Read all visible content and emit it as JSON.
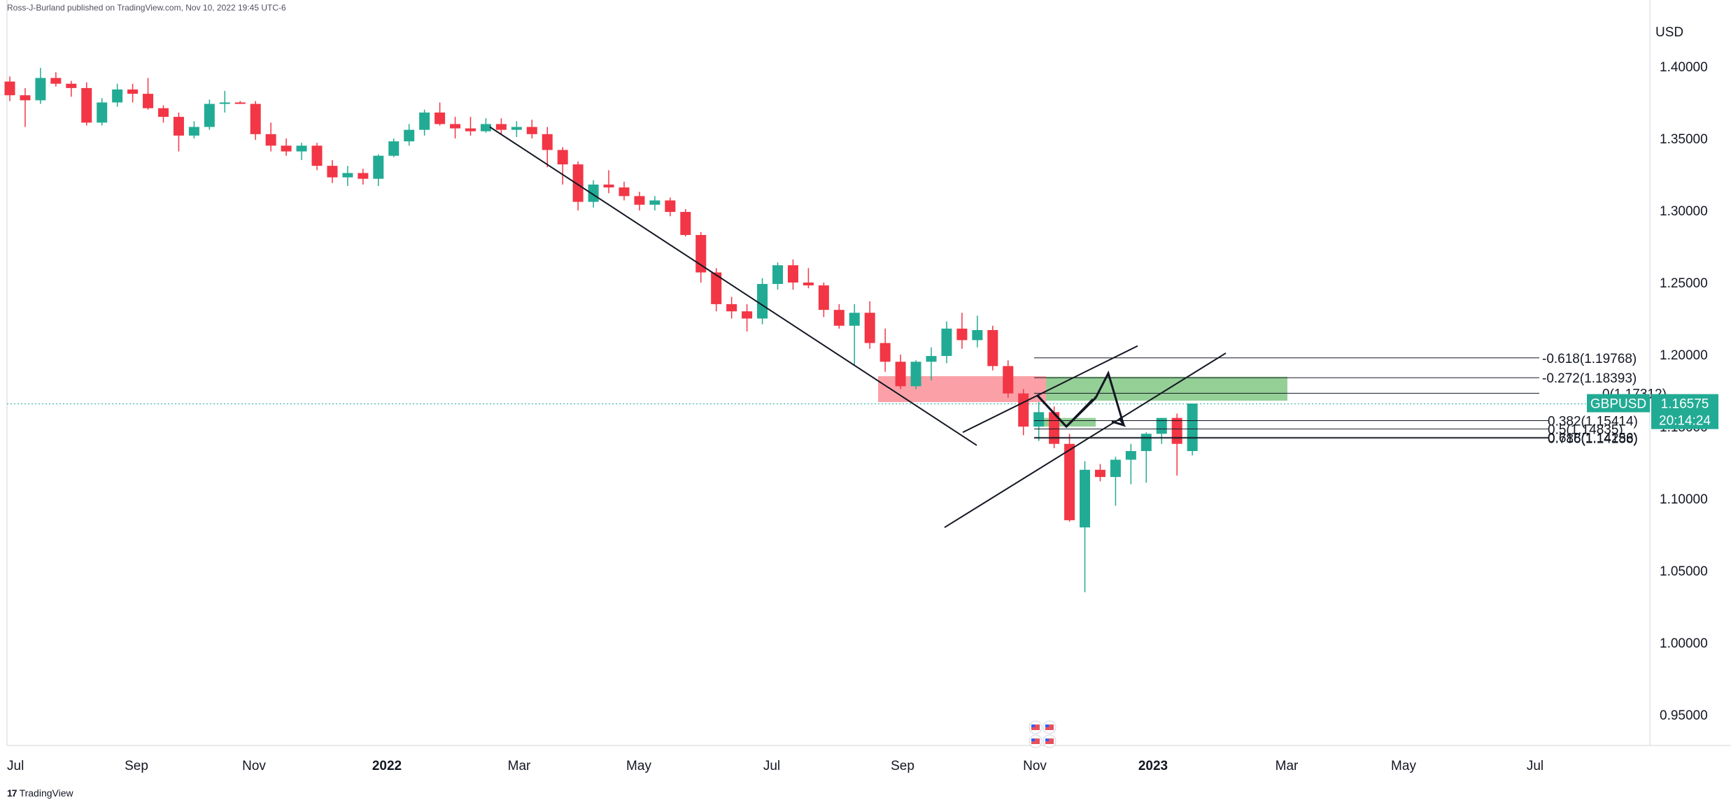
{
  "header": {
    "publisher": "Ross-J-Burland published on TradingView.com, Nov 10, 2022 19:45 UTC-6"
  },
  "footer": {
    "logo_text": "TradingView"
  },
  "price_tag": {
    "symbol": "GBPUSD",
    "price": "1.16575",
    "countdown": "20:14:24",
    "color": "#22ab94"
  },
  "chart_data": {
    "type": "candlestick",
    "currency": "USD",
    "timeframe": "weekly",
    "ylim": [
      0.93,
      1.415
    ],
    "y_ticks": [
      "1.40000",
      "1.35000",
      "1.30000",
      "1.25000",
      "1.20000",
      "1.15000",
      "1.10000",
      "1.05000",
      "1.00000",
      "0.95000"
    ],
    "x_ticks": [
      "Jul",
      "Sep",
      "Nov",
      "2022",
      "Mar",
      "May",
      "Jul",
      "Sep",
      "Nov",
      "2023",
      "Mar",
      "May",
      "Jul"
    ],
    "x_ticks_bold": [
      "2022",
      "2023"
    ],
    "up_color": "#22ab94",
    "down_color": "#f23645",
    "candles": [
      [
        1.3895,
        1.393,
        1.376,
        1.38
      ],
      [
        1.38,
        1.385,
        1.358,
        1.3765
      ],
      [
        1.3765,
        1.399,
        1.374,
        1.392
      ],
      [
        1.392,
        1.396,
        1.386,
        1.388
      ],
      [
        1.388,
        1.39,
        1.379,
        1.385
      ],
      [
        1.385,
        1.389,
        1.359,
        1.361
      ],
      [
        1.361,
        1.378,
        1.359,
        1.375
      ],
      [
        1.375,
        1.388,
        1.372,
        1.384
      ],
      [
        1.384,
        1.388,
        1.375,
        1.381
      ],
      [
        1.381,
        1.392,
        1.37,
        1.371
      ],
      [
        1.371,
        1.373,
        1.361,
        1.365
      ],
      [
        1.365,
        1.368,
        1.341,
        1.352
      ],
      [
        1.352,
        1.362,
        1.35,
        1.358
      ],
      [
        1.358,
        1.377,
        1.356,
        1.374
      ],
      [
        1.374,
        1.383,
        1.368,
        1.375
      ],
      [
        1.375,
        1.376,
        1.374,
        1.374
      ],
      [
        1.374,
        1.376,
        1.349,
        1.353
      ],
      [
        1.353,
        1.361,
        1.341,
        1.345
      ],
      [
        1.345,
        1.35,
        1.338,
        1.341
      ],
      [
        1.341,
        1.347,
        1.335,
        1.345
      ],
      [
        1.345,
        1.347,
        1.328,
        1.331
      ],
      [
        1.331,
        1.335,
        1.319,
        1.323
      ],
      [
        1.323,
        1.331,
        1.317,
        1.326
      ],
      [
        1.326,
        1.329,
        1.318,
        1.322
      ],
      [
        1.322,
        1.339,
        1.317,
        1.338
      ],
      [
        1.338,
        1.35,
        1.337,
        1.348
      ],
      [
        1.348,
        1.36,
        1.345,
        1.356
      ],
      [
        1.356,
        1.37,
        1.352,
        1.368
      ],
      [
        1.368,
        1.375,
        1.359,
        1.36
      ],
      [
        1.36,
        1.365,
        1.35,
        1.357
      ],
      [
        1.357,
        1.365,
        1.352,
        1.355
      ],
      [
        1.355,
        1.364,
        1.354,
        1.36
      ],
      [
        1.36,
        1.364,
        1.353,
        1.356
      ],
      [
        1.356,
        1.362,
        1.351,
        1.358
      ],
      [
        1.358,
        1.363,
        1.35,
        1.353
      ],
      [
        1.353,
        1.358,
        1.33,
        1.342
      ],
      [
        1.342,
        1.344,
        1.318,
        1.332
      ],
      [
        1.332,
        1.334,
        1.3,
        1.306
      ],
      [
        1.306,
        1.321,
        1.302,
        1.318
      ],
      [
        1.318,
        1.328,
        1.312,
        1.316
      ],
      [
        1.316,
        1.32,
        1.307,
        1.31
      ],
      [
        1.31,
        1.313,
        1.3,
        1.304
      ],
      [
        1.304,
        1.31,
        1.3,
        1.307
      ],
      [
        1.307,
        1.309,
        1.296,
        1.299
      ],
      [
        1.299,
        1.301,
        1.282,
        1.283
      ],
      [
        1.283,
        1.285,
        1.25,
        1.257
      ],
      [
        1.257,
        1.26,
        1.23,
        1.235
      ],
      [
        1.235,
        1.24,
        1.225,
        1.23
      ],
      [
        1.23,
        1.235,
        1.216,
        1.225
      ],
      [
        1.225,
        1.253,
        1.221,
        1.249
      ],
      [
        1.249,
        1.264,
        1.245,
        1.262
      ],
      [
        1.262,
        1.266,
        1.245,
        1.25
      ],
      [
        1.25,
        1.26,
        1.246,
        1.248
      ],
      [
        1.248,
        1.25,
        1.226,
        1.231
      ],
      [
        1.231,
        1.235,
        1.218,
        1.22
      ],
      [
        1.22,
        1.235,
        1.193,
        1.229
      ],
      [
        1.229,
        1.237,
        1.204,
        1.208
      ],
      [
        1.208,
        1.218,
        1.188,
        1.195
      ],
      [
        1.195,
        1.2,
        1.176,
        1.178
      ],
      [
        1.178,
        1.196,
        1.176,
        1.195
      ],
      [
        1.195,
        1.205,
        1.182,
        1.199
      ],
      [
        1.199,
        1.223,
        1.194,
        1.218
      ],
      [
        1.218,
        1.229,
        1.204,
        1.21
      ],
      [
        1.21,
        1.227,
        1.205,
        1.217
      ],
      [
        1.217,
        1.22,
        1.189,
        1.192
      ],
      [
        1.192,
        1.196,
        1.17,
        1.173
      ],
      [
        1.173,
        1.176,
        1.144,
        1.15
      ],
      [
        1.15,
        1.167,
        1.14,
        1.16
      ],
      [
        1.16,
        1.164,
        1.135,
        1.138
      ],
      [
        1.138,
        1.145,
        1.084,
        1.085
      ],
      [
        1.08,
        1.126,
        1.035,
        1.12
      ],
      [
        1.12,
        1.124,
        1.112,
        1.115
      ],
      [
        1.115,
        1.129,
        1.095,
        1.127
      ],
      [
        1.127,
        1.138,
        1.11,
        1.133
      ],
      [
        1.133,
        1.146,
        1.111,
        1.145
      ],
      [
        1.145,
        1.156,
        1.138,
        1.156
      ],
      [
        1.156,
        1.159,
        1.116,
        1.138
      ],
      [
        1.133,
        1.166,
        1.13,
        1.166
      ]
    ],
    "fib_levels": [
      {
        "label": "-0.618(1.19768)",
        "value": 1.19768
      },
      {
        "label": "-0.272(1.18393)",
        "value": 1.18393
      },
      {
        "label": "0(1.17312)",
        "value": 1.17312
      },
      {
        "label": "0.382(1.15414)",
        "value": 1.15414
      },
      {
        "label": "0.5(1.14835)",
        "value": 1.14835
      },
      {
        "label": "0.618(1.14256)",
        "value": 1.14256
      },
      {
        "label": "0.786(1.14188)",
        "value": 1.14188
      }
    ],
    "zones": [
      {
        "name": "resistance-zone",
        "color": "#f7525f",
        "opacity": 0.55
      },
      {
        "name": "target-zone",
        "color": "#4caf50",
        "opacity": 0.6
      },
      {
        "name": "support-zone",
        "color": "#4caf50",
        "opacity": 0.6
      }
    ],
    "current_price": 1.16575,
    "price_line_color": "#22ab94"
  }
}
